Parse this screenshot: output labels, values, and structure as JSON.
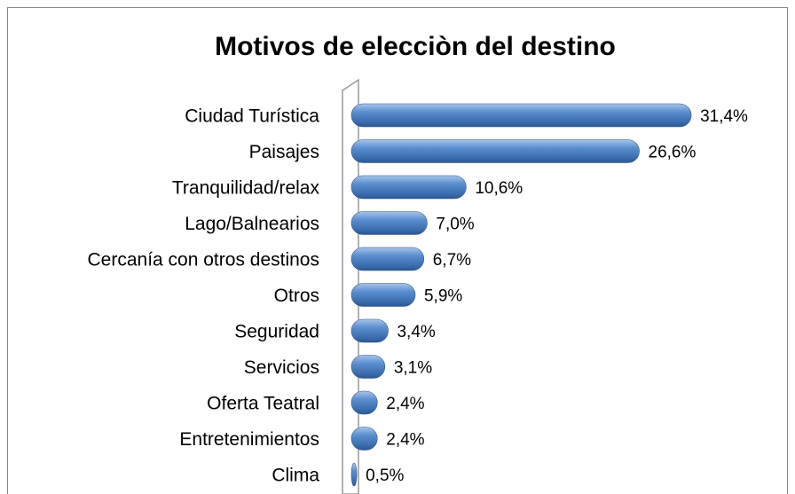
{
  "chart_data": {
    "type": "bar",
    "orientation": "horizontal",
    "title": "Motivos de elecciòn del destino",
    "categories": [
      "Ciudad Turística",
      "Paisajes",
      "Tranquilidad/relax",
      "Lago/Balnearios",
      "Cercanía con otros destinos",
      "Otros",
      "Seguridad",
      "Servicios",
      "Oferta Teatral",
      "Entretenimientos",
      "Clima"
    ],
    "values": [
      31.4,
      26.6,
      10.6,
      7.0,
      6.7,
      5.9,
      3.4,
      3.1,
      2.4,
      2.4,
      0.5
    ],
    "value_labels": [
      "31,4%",
      "26,6%",
      "10,6%",
      "7,0%",
      "6,7%",
      "5,9%",
      "3,4%",
      "3,1%",
      "2,4%",
      "2,4%",
      "0,5%"
    ],
    "color": "#4f81bd"
  }
}
